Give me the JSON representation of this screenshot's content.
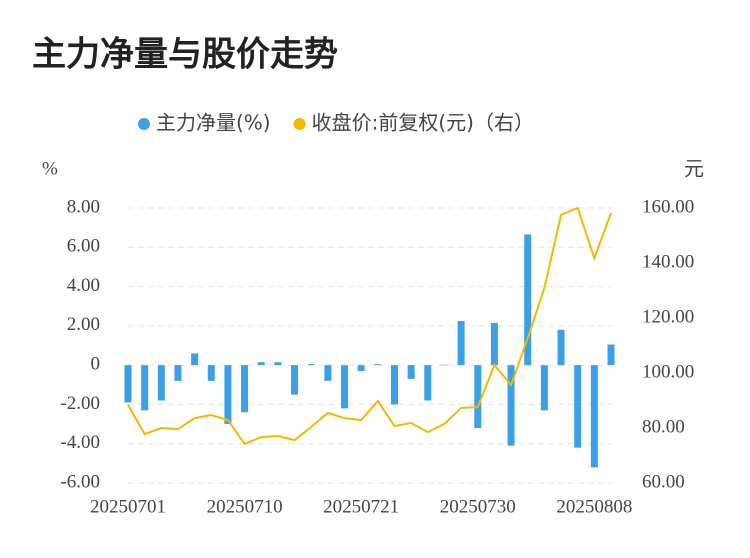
{
  "chart_data": {
    "type": "bar-line",
    "title": "主力净量与股价走势",
    "y_label": "%",
    "y2_label": "元",
    "categories": [
      "20250701",
      null,
      null,
      null,
      null,
      null,
      null,
      "20250710",
      null,
      null,
      null,
      null,
      null,
      null,
      "20250721",
      null,
      null,
      null,
      null,
      null,
      null,
      "20250730",
      null,
      null,
      null,
      null,
      null,
      null,
      "20250808",
      null
    ],
    "series": [
      {
        "name": "主力净量(%)",
        "color": "#3ba0e8",
        "kind": "bar",
        "values": [
          -1.9,
          -2.3,
          -1.8,
          -0.8,
          0.6,
          -0.8,
          -3.0,
          -2.4,
          0.15,
          0.15,
          -1.5,
          0.05,
          -0.8,
          -2.2,
          -0.3,
          0.05,
          -2.0,
          -0.7,
          -1.8,
          0.02,
          2.25,
          -3.2,
          2.15,
          -4.1,
          6.65,
          -2.3,
          1.8,
          -4.2,
          -5.2,
          1.05
        ]
      },
      {
        "name": "收盘价:前复权(元)（右）",
        "color": "#f5b800",
        "kind": "line",
        "axis": "y2",
        "values": [
          88.4,
          77.8,
          80.0,
          79.6,
          83.6,
          84.7,
          82.9,
          74.2,
          76.7,
          77.1,
          75.6,
          80.4,
          85.5,
          83.6,
          82.9,
          89.8,
          80.7,
          81.8,
          78.5,
          81.5,
          87.3,
          87.6,
          102.9,
          95.6,
          112.7,
          130.9,
          157.5,
          160.0,
          141.8,
          158.2
        ]
      }
    ],
    "ylim": [
      -6,
      8
    ],
    "yticks": [
      {
        "value": -6,
        "label": "-6.00"
      },
      {
        "value": -4,
        "label": "-4.00"
      },
      {
        "value": -2,
        "label": "-2.00"
      },
      0,
      {
        "value": 2,
        "label": "2.00"
      },
      {
        "value": 4,
        "label": "4.00"
      },
      {
        "value": 6,
        "label": "6.00"
      },
      {
        "value": 8,
        "label": "8.00"
      }
    ],
    "y2lim": [
      60,
      160
    ],
    "y2ticks": [
      {
        "value": 60,
        "label": "60.00"
      },
      {
        "value": 80,
        "label": "80.00"
      },
      {
        "value": 100,
        "label": "100.00"
      },
      {
        "value": 120,
        "label": "120.00"
      },
      {
        "value": 140,
        "label": "140.00"
      },
      {
        "value": 160,
        "label": "160.00"
      }
    ],
    "grid": true
  }
}
